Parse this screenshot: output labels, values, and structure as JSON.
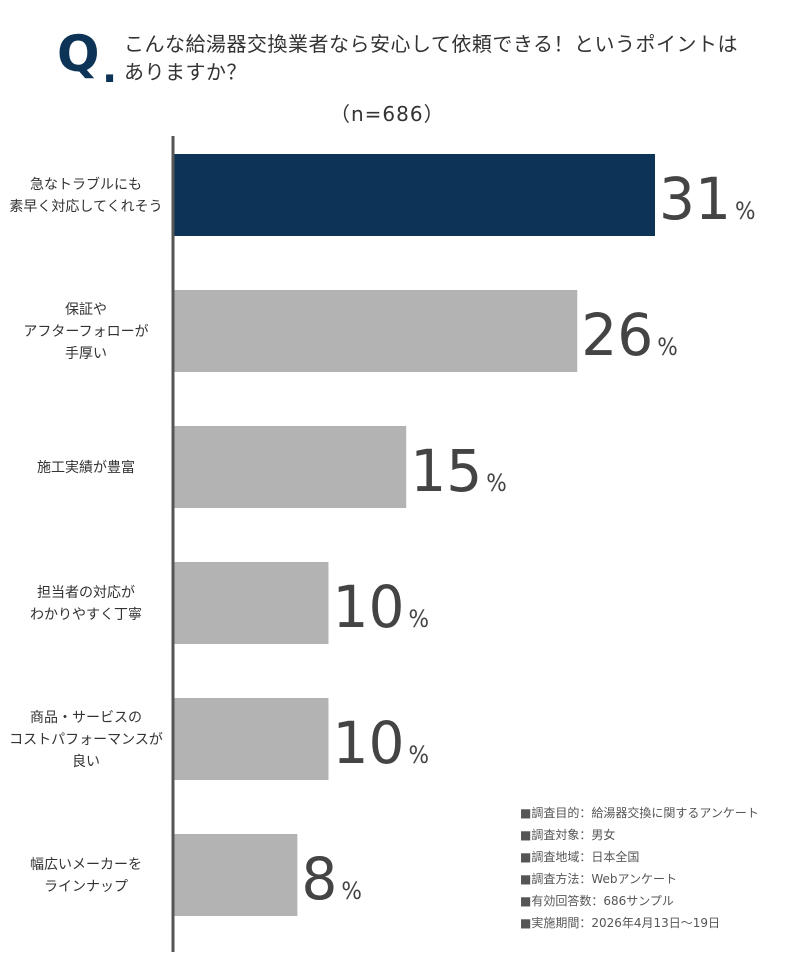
{
  "header": {
    "q_letter": "Q",
    "q_dot": ".",
    "question_line1": "こんな給湯器交換業者なら安心して依頼できる！というポイントは",
    "question_line2": "ありますか？",
    "sample": "（n=686）"
  },
  "chart_data": {
    "type": "bar",
    "orientation": "horizontal",
    "categories": [
      [
        "急なトラブルにも",
        "素早く対応してくれそう"
      ],
      [
        "保証や",
        "アフターフォローが",
        "手厚い"
      ],
      [
        "施工実績が豊富"
      ],
      [
        "担当者の対応が",
        "わかりやすく丁寧"
      ],
      [
        "商品・サービスの",
        "コストパフォーマンスが",
        "良い"
      ],
      [
        "幅広いメーカーを",
        "ラインナップ"
      ]
    ],
    "values": [
      31,
      26,
      15,
      10,
      10,
      8
    ],
    "unit": "%",
    "highlight_index": 0,
    "xlim": [
      0,
      42
    ],
    "colors": {
      "highlight": "#0d3457",
      "default": "#b3b3b3",
      "axis": "#555555",
      "value_text": "#444444"
    }
  },
  "legend": [
    "■調査目的：給湯器交換に関するアンケート",
    "■調査対象：男女",
    "■調査地域：日本全国",
    "■調査方法：Webアンケート",
    "■有効回答数：686サンプル",
    "■実施期間：2026年4月13日〜19日"
  ]
}
